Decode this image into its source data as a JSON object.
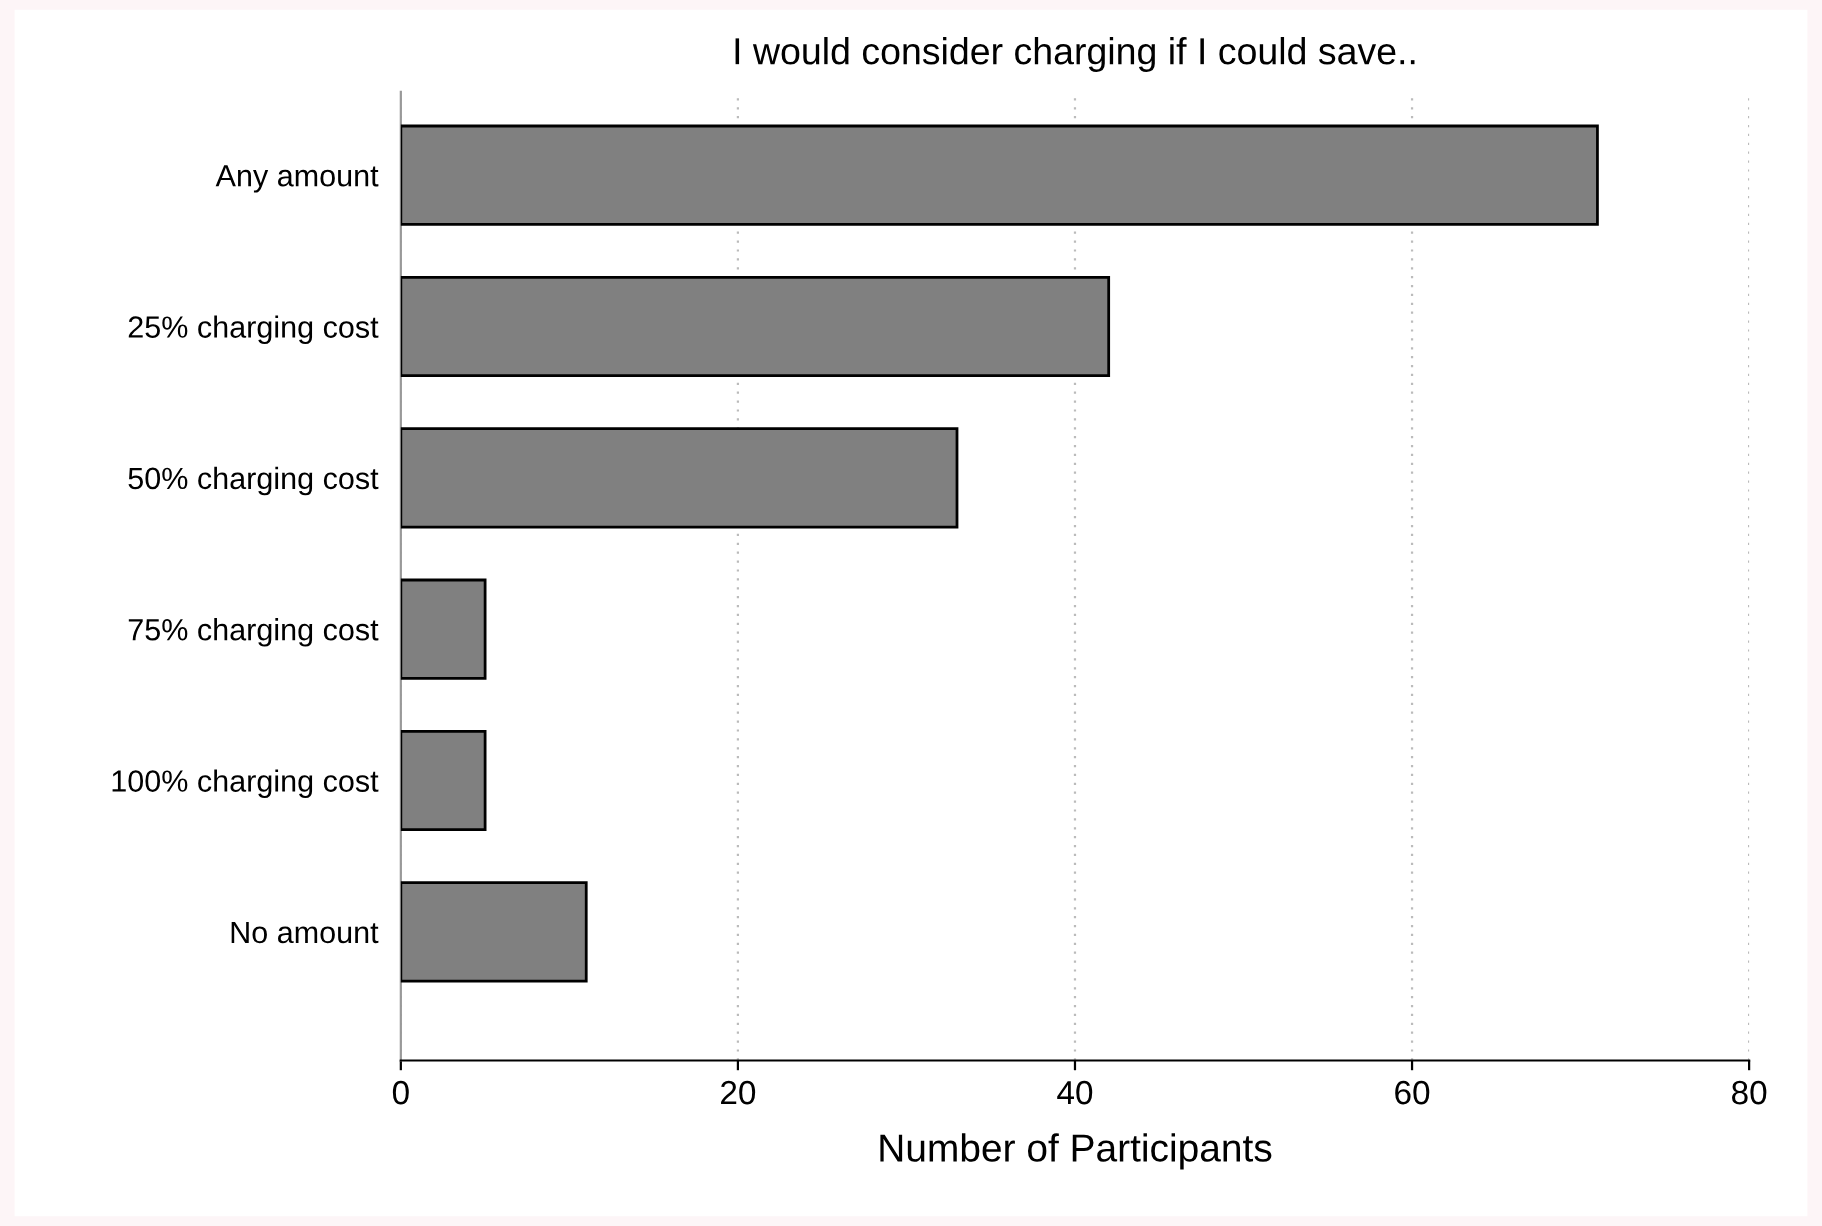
{
  "chart_data": {
    "type": "bar",
    "orientation": "horizontal",
    "title": "I would consider charging if I could save..",
    "xlabel": "Number of Participants",
    "categories": [
      "Any amount",
      "25% charging cost",
      "50% charging cost",
      "75% charging cost",
      "100% charging cost",
      "No amount"
    ],
    "values": [
      71,
      42,
      33,
      5,
      5,
      11
    ],
    "color": "#808080",
    "xlim": [
      0,
      80
    ],
    "xticks": [
      0,
      20,
      40,
      60,
      80
    ],
    "grid": "x",
    "legend": false
  }
}
